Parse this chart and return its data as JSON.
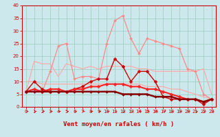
{
  "xlabel": "Vent moyen/en rafales ( km/h )",
  "xlim": [
    -0.5,
    23.5
  ],
  "ylim": [
    0,
    40
  ],
  "xticks": [
    0,
    1,
    2,
    3,
    4,
    5,
    6,
    7,
    8,
    9,
    10,
    11,
    12,
    13,
    14,
    15,
    16,
    17,
    18,
    19,
    20,
    21,
    22,
    23
  ],
  "yticks": [
    0,
    5,
    10,
    15,
    20,
    25,
    30,
    35,
    40
  ],
  "background_color": "#cce8ec",
  "grid_color": "#99ccbb",
  "series": [
    {
      "x": [
        0,
        1,
        2,
        3,
        4,
        5,
        6,
        7,
        8,
        9,
        10,
        11,
        12,
        13,
        14,
        15,
        16,
        17,
        18,
        19,
        20,
        21,
        22,
        23
      ],
      "y": [
        6,
        18,
        17,
        17,
        12,
        17,
        16,
        15,
        16,
        15,
        16,
        16,
        16,
        16,
        15,
        15,
        14,
        14,
        14,
        14,
        14,
        14,
        15,
        5
      ],
      "color": "#ffaaaa",
      "lw": 0.9,
      "marker": null,
      "zorder": 2
    },
    {
      "x": [
        0,
        1,
        2,
        3,
        4,
        5,
        6,
        7,
        8,
        9,
        10,
        11,
        12,
        13,
        14,
        15,
        16,
        17,
        18,
        19,
        20,
        21,
        22,
        23
      ],
      "y": [
        10,
        10,
        9,
        9,
        9,
        9,
        9,
        9,
        9,
        9,
        9,
        9,
        9,
        9,
        9,
        8,
        8,
        8,
        7,
        7,
        6,
        5,
        4,
        3
      ],
      "color": "#ffaaaa",
      "lw": 0.9,
      "marker": null,
      "zorder": 2
    },
    {
      "x": [
        0,
        1,
        2,
        3,
        4,
        5,
        6,
        7,
        8,
        9,
        10,
        11,
        12,
        13,
        14,
        15,
        16,
        17,
        18,
        19,
        20,
        21,
        22,
        23
      ],
      "y": [
        6,
        6,
        6,
        14,
        24,
        25,
        11,
        12,
        12,
        11,
        25,
        34,
        36,
        27,
        21,
        27,
        26,
        25,
        24,
        23,
        15,
        14,
        5,
        3
      ],
      "color": "#ff8888",
      "lw": 0.9,
      "marker": "D",
      "ms": 2.0,
      "zorder": 3
    },
    {
      "x": [
        0,
        1,
        2,
        3,
        4,
        5,
        6,
        7,
        8,
        9,
        10,
        11,
        12,
        13,
        14,
        15,
        16,
        17,
        18,
        19,
        20,
        21,
        22,
        23
      ],
      "y": [
        6,
        10,
        7,
        6,
        6,
        6,
        7,
        8,
        10,
        11,
        11,
        19,
        16,
        10,
        14,
        14,
        10,
        4,
        3,
        3,
        3,
        3,
        1,
        3
      ],
      "color": "#cc0000",
      "lw": 1.0,
      "marker": "D",
      "ms": 2.5,
      "zorder": 4
    },
    {
      "x": [
        0,
        1,
        2,
        3,
        4,
        5,
        6,
        7,
        8,
        9,
        10,
        11,
        12,
        13,
        14,
        15,
        16,
        17,
        18,
        19,
        20,
        21,
        22,
        23
      ],
      "y": [
        6,
        7,
        6,
        7,
        7,
        6,
        7,
        7,
        8,
        8,
        9,
        9,
        9,
        8,
        8,
        7,
        7,
        6,
        5,
        4,
        3,
        3,
        2,
        3
      ],
      "color": "#ff2222",
      "lw": 1.5,
      "marker": "D",
      "ms": 2.5,
      "zorder": 5
    },
    {
      "x": [
        0,
        1,
        2,
        3,
        4,
        5,
        6,
        7,
        8,
        9,
        10,
        11,
        12,
        13,
        14,
        15,
        16,
        17,
        18,
        19,
        20,
        21,
        22,
        23
      ],
      "y": [
        6,
        6,
        6,
        6,
        6,
        6,
        6,
        6,
        6,
        6,
        6,
        6,
        5,
        5,
        5,
        5,
        4,
        4,
        4,
        3,
        3,
        3,
        2,
        3
      ],
      "color": "#880000",
      "lw": 1.8,
      "marker": "D",
      "ms": 2.0,
      "zorder": 6
    }
  ],
  "arrow_color": "#cc0000",
  "tick_fontsize": 5.0,
  "label_fontsize": 6.5,
  "tick_color": "#cc0000",
  "axis_color": "#cc0000"
}
